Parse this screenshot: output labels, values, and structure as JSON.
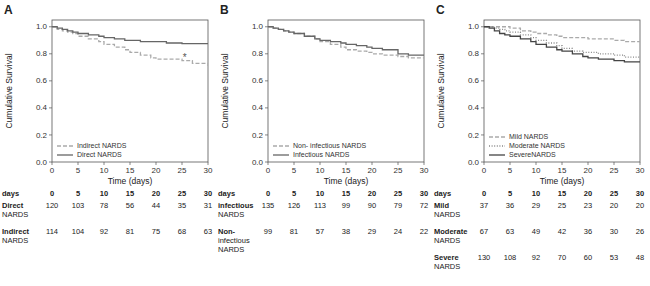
{
  "chart_data": [
    {
      "type": "step",
      "title": "A",
      "xlabel": "Time (days)",
      "ylabel": "Cumulative Survival",
      "x": [
        0,
        1,
        2,
        3,
        4,
        5,
        7,
        9,
        10,
        12,
        14,
        15,
        17,
        19,
        20,
        22,
        25,
        27,
        30
      ],
      "xlim": [
        0,
        30
      ],
      "ylim": [
        0,
        1.05
      ],
      "xticks": [
        0,
        5,
        10,
        15,
        20,
        25,
        30
      ],
      "yticks": [
        {
          "value": 0,
          "label": "0.0"
        },
        0.2,
        0.4,
        0.6,
        0.8,
        {
          "value": 1.0,
          "label": "1.0"
        }
      ],
      "grid": false,
      "legend": "lower left",
      "series": [
        {
          "name": "Indirect NARDS",
          "color": "#aaaaaa",
          "line_style": "dashed",
          "values": [
            1.0,
            0.98,
            0.97,
            0.96,
            0.95,
            0.93,
            0.91,
            0.89,
            0.87,
            0.85,
            0.83,
            0.81,
            0.79,
            0.77,
            0.76,
            0.76,
            0.75,
            0.73,
            0.71
          ]
        },
        {
          "name": "Direct NARDS",
          "color": "#666666",
          "line_style": "solid",
          "values": [
            1.0,
            0.99,
            0.98,
            0.97,
            0.96,
            0.95,
            0.94,
            0.93,
            0.92,
            0.91,
            0.9,
            0.9,
            0.89,
            0.89,
            0.89,
            0.88,
            0.875,
            0.875,
            0.87
          ]
        }
      ],
      "annotations": [
        {
          "text": "*",
          "x": 25.5,
          "y": 0.77
        }
      ],
      "table": {
        "header": "days",
        "days": [
          0,
          5,
          10,
          15,
          20,
          25,
          30
        ],
        "rows": [
          {
            "label": "Direct\nNARDS",
            "values": [
              120,
              103,
              78,
              56,
              44,
              35,
              31
            ]
          },
          {
            "label": "Indirect\nNARDS",
            "values": [
              114,
              104,
              92,
              81,
              75,
              68,
              63
            ]
          }
        ]
      }
    },
    {
      "type": "step",
      "title": "B",
      "xlabel": "Time (days)",
      "ylabel": "Cumulative Survival",
      "x": [
        0,
        1,
        2,
        3,
        4,
        5,
        7,
        9,
        10,
        12,
        14,
        15,
        17,
        19,
        20,
        22,
        25,
        27,
        30
      ],
      "xlim": [
        0,
        30
      ],
      "ylim": [
        0,
        1.05
      ],
      "xticks": [
        0,
        5,
        10,
        15,
        20,
        25,
        30
      ],
      "yticks": [
        {
          "value": 0,
          "label": "0.0"
        },
        0.2,
        0.4,
        0.6,
        0.8,
        {
          "value": 1.0,
          "label": "1.0"
        }
      ],
      "grid": false,
      "legend": "lower left",
      "series": [
        {
          "name": "Non- infectious NARDS",
          "color": "#aaaaaa",
          "line_style": "dashed",
          "values": [
            1.0,
            0.99,
            0.98,
            0.97,
            0.96,
            0.95,
            0.93,
            0.91,
            0.89,
            0.87,
            0.85,
            0.83,
            0.82,
            0.81,
            0.8,
            0.79,
            0.78,
            0.77,
            0.77
          ]
        },
        {
          "name": "Infectious NARDS",
          "color": "#666666",
          "line_style": "solid",
          "values": [
            1.0,
            0.99,
            0.98,
            0.97,
            0.96,
            0.95,
            0.93,
            0.91,
            0.9,
            0.89,
            0.88,
            0.87,
            0.86,
            0.85,
            0.84,
            0.83,
            0.8,
            0.79,
            0.79
          ]
        }
      ],
      "table": {
        "header": "days",
        "days": [
          0,
          5,
          10,
          15,
          20,
          25,
          30
        ],
        "rows": [
          {
            "label": "infectious\nNARDS",
            "values": [
              135,
              126,
              113,
              99,
              90,
              79,
              72
            ]
          },
          {
            "label": "Non-\ninfectious\nNARDS",
            "values": [
              99,
              81,
              57,
              38,
              29,
              24,
              22
            ]
          }
        ]
      }
    },
    {
      "type": "step",
      "title": "C",
      "xlabel": "Time (days)",
      "ylabel": "Cumulative Survival",
      "x": [
        0,
        1,
        2,
        3,
        4,
        5,
        7,
        9,
        10,
        12,
        14,
        15,
        17,
        19,
        20,
        22,
        25,
        27,
        30
      ],
      "xlim": [
        0,
        30
      ],
      "ylim": [
        0,
        1.05
      ],
      "xticks": [
        0,
        5,
        10,
        15,
        20,
        25,
        30
      ],
      "yticks": [
        {
          "value": 0,
          "label": "0.0"
        },
        0.2,
        0.4,
        0.6,
        0.8,
        {
          "value": 1.0,
          "label": "1.0"
        }
      ],
      "grid": false,
      "legend": "lower left",
      "series": [
        {
          "name": "Mild NARDS",
          "color": "#aaaaaa",
          "line_style": "dashed",
          "values": [
            1.0,
            1.0,
            1.0,
            1.0,
            1.0,
            0.99,
            0.97,
            0.96,
            0.95,
            0.94,
            0.93,
            0.92,
            0.92,
            0.92,
            0.91,
            0.91,
            0.9,
            0.89,
            0.89
          ]
        },
        {
          "name": "Moderate NARDS",
          "color": "#888888",
          "line_style": "dotted",
          "values": [
            1.0,
            1.0,
            0.99,
            0.98,
            0.97,
            0.96,
            0.94,
            0.92,
            0.9,
            0.88,
            0.86,
            0.84,
            0.82,
            0.81,
            0.81,
            0.8,
            0.79,
            0.775,
            0.775
          ]
        },
        {
          "name": "SevereNARDS",
          "color": "#444444",
          "line_style": "solid",
          "values": [
            1.0,
            0.99,
            0.97,
            0.95,
            0.94,
            0.93,
            0.91,
            0.89,
            0.87,
            0.85,
            0.83,
            0.82,
            0.8,
            0.78,
            0.77,
            0.76,
            0.75,
            0.74,
            0.74
          ]
        }
      ],
      "table": {
        "header": "days",
        "days": [
          0,
          5,
          10,
          15,
          20,
          25,
          30
        ],
        "rows": [
          {
            "label": "Mild\nNARDS",
            "values": [
              37,
              36,
              29,
              25,
              23,
              20,
              20
            ]
          },
          {
            "label": "Moderate\nNARDS",
            "values": [
              67,
              63,
              49,
              42,
              36,
              30,
              26
            ]
          },
          {
            "label": "Severe\nNARDS",
            "values": [
              130,
              108,
              92,
              70,
              60,
              53,
              48
            ]
          }
        ]
      }
    }
  ]
}
